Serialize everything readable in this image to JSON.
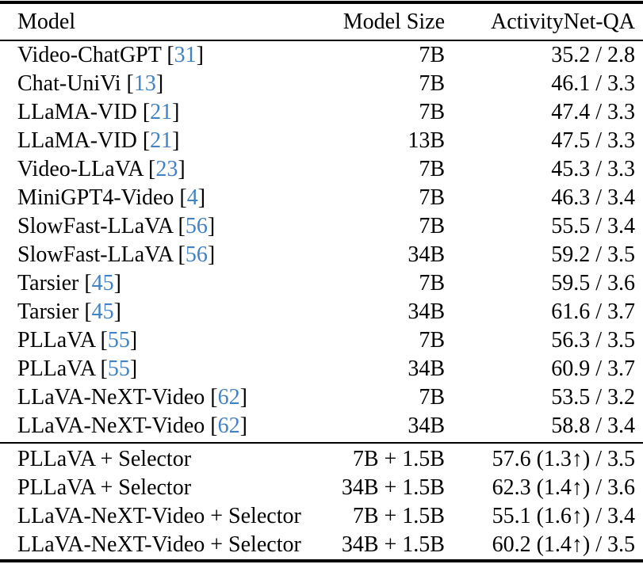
{
  "table": {
    "columns": [
      {
        "key": "model",
        "label": "Model"
      },
      {
        "key": "size",
        "label": "Model Size"
      },
      {
        "key": "score",
        "label": "ActivityNet-QA"
      }
    ],
    "cite_prefix": " [",
    "cite_suffix": "]",
    "citation_color": "#4282c3",
    "text_color": "#000000",
    "sections": [
      {
        "rows": [
          {
            "model": "Video-ChatGPT",
            "cite": "31",
            "size": "7B",
            "score": "35.2 / 2.8"
          },
          {
            "model": "Chat-UniVi",
            "cite": "13",
            "size": "7B",
            "score": "46.1 / 3.3"
          },
          {
            "model": "LLaMA-VID",
            "cite": "21",
            "size": "7B",
            "score": "47.4 / 3.3"
          },
          {
            "model": "LLaMA-VID",
            "cite": "21",
            "size": "13B",
            "score": "47.5 / 3.3"
          },
          {
            "model": "Video-LLaVA",
            "cite": "23",
            "size": "7B",
            "score": "45.3 / 3.3"
          },
          {
            "model": "MiniGPT4-Video",
            "cite": "4",
            "size": "7B",
            "score": "46.3 / 3.4"
          },
          {
            "model": "SlowFast-LLaVA",
            "cite": "56",
            "size": "7B",
            "score": "55.5 / 3.4"
          },
          {
            "model": "SlowFast-LLaVA",
            "cite": "56",
            "size": "34B",
            "score": "59.2 / 3.5"
          },
          {
            "model": "Tarsier",
            "cite": "45",
            "size": "7B",
            "score": "59.5 / 3.6"
          },
          {
            "model": "Tarsier",
            "cite": "45",
            "size": "34B",
            "score": "61.6 / 3.7"
          },
          {
            "model": "PLLaVA",
            "cite": "55",
            "size": "7B",
            "score": "56.3 / 3.5"
          },
          {
            "model": "PLLaVA",
            "cite": "55",
            "size": "34B",
            "score": "60.9 / 3.7"
          },
          {
            "model": "LLaVA-NeXT-Video",
            "cite": "62",
            "size": "7B",
            "score": "53.5 / 3.2"
          },
          {
            "model": "LLaVA-NeXT-Video",
            "cite": "62",
            "size": "34B",
            "score": "58.8 / 3.4"
          }
        ]
      },
      {
        "rows": [
          {
            "model": "PLLaVA + Selector",
            "cite": null,
            "size": "7B + 1.5B",
            "score": "57.6 (1.3↑) / 3.5"
          },
          {
            "model": "PLLaVA + Selector",
            "cite": null,
            "size": "34B + 1.5B",
            "score": "62.3 (1.4↑) / 3.6"
          },
          {
            "model": "LLaVA-NeXT-Video + Selector",
            "cite": null,
            "size": "7B + 1.5B",
            "score": "55.1 (1.6↑) / 3.4"
          },
          {
            "model": "LLaVA-NeXT-Video + Selector",
            "cite": null,
            "size": "34B + 1.5B",
            "score": "60.2 (1.4↑) / 3.5"
          }
        ]
      }
    ]
  }
}
